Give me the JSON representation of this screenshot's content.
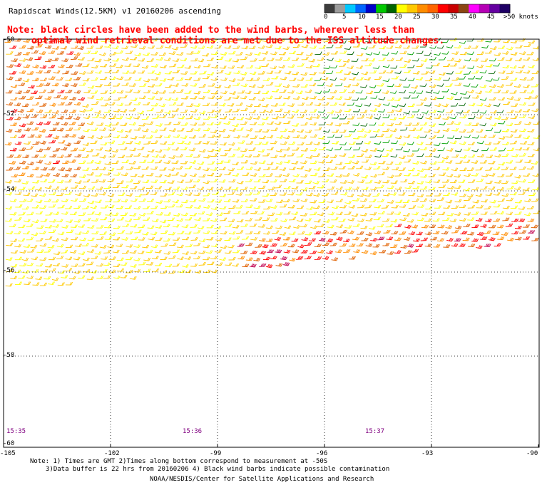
{
  "title": "Rapidscat Winds(12.5KM) v1 20160206 ascending",
  "note_line1": "Note: black circles have been added to the wind barbs, wherever less than",
  "note_line2": "optimal wind retrieval conditions are met due to the ISS altitude changes.",
  "colorbar": {
    "ticks": [
      "0",
      "5",
      "10",
      "15",
      "20",
      "25",
      "30",
      "35",
      "40",
      "45",
      ">50 knots"
    ],
    "colors": [
      "#3c3c3c",
      "#9c9c9c",
      "#00c8ff",
      "#0064ff",
      "#0000c8",
      "#00c800",
      "#006400",
      "#ffff00",
      "#ffc800",
      "#ff8c00",
      "#ff6400",
      "#ff0000",
      "#c80000",
      "#8b4513",
      "#ff00ff",
      "#b400b4",
      "#6400a0",
      "#1e0064"
    ]
  },
  "lat_labels": [
    "-50",
    "-52",
    "-54",
    "-56",
    "-58",
    "-60"
  ],
  "lon_labels": [
    "-105",
    "-102",
    "-99",
    "-96",
    "-93",
    "-90"
  ],
  "time_labels": [
    "15:35",
    "15:36",
    "15:37"
  ],
  "footer_line1": "Note: 1) Times are GMT 2)Times along bottom correspond to measurement at -50S",
  "footer_line2": "3)Data buffer is 22 hrs from 20160206 4) Black wind barbs indicate possible contamination",
  "footer_line3": "NOAA/NESDIS/Center for Satellite Applications and Research",
  "chart_data": {
    "type": "wind-barb map",
    "lon_range": [
      -105,
      -90
    ],
    "lat_range": [
      -60,
      -50
    ],
    "grid": true,
    "speed_units": "knots"
  }
}
